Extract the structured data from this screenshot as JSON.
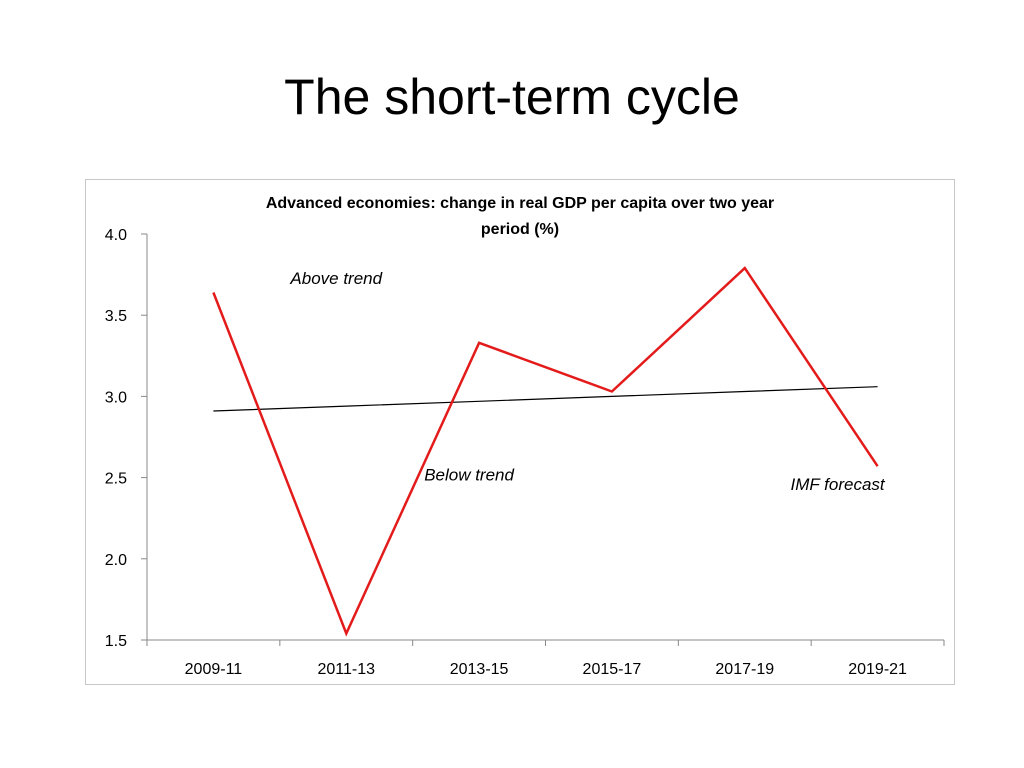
{
  "slide": {
    "title": "The short-term cycle"
  },
  "colors": {
    "series": "#e31b1b",
    "trend": "#000000",
    "axis": "#888888",
    "frame": "#c8c8c8"
  },
  "chart_data": {
    "type": "line",
    "title_lines": [
      "Advanced economies: change in real GDP per capita over two year",
      "period (%)"
    ],
    "categories": [
      "2009-11",
      "2011-13",
      "2013-15",
      "2015-17",
      "2017-19",
      "2019-21"
    ],
    "series": [
      {
        "values": [
          3.64,
          1.54,
          3.33,
          3.03,
          3.79,
          2.57
        ],
        "color": "#e31b1b"
      },
      {
        "values": [
          2.91,
          2.94,
          2.97,
          3.0,
          3.03,
          3.06
        ],
        "color": "#000000",
        "style": "trend line"
      }
    ],
    "y_axis": {
      "min": 1.5,
      "max": 4.0,
      "step": 0.5,
      "tick_labels": [
        "1.5",
        "2.0",
        "2.5",
        "3.0",
        "3.5",
        "4.0"
      ]
    },
    "grid": false,
    "legend": "none",
    "annotations": [
      {
        "text": "Above trend",
        "near": {
          "category": "2011-13",
          "value": 3.73
        }
      },
      {
        "text": "Below trend",
        "near": {
          "category": "2013-15",
          "value": 2.52
        }
      },
      {
        "text": "IMF forecast",
        "near": {
          "category": "2019-21",
          "value": 2.46
        }
      }
    ]
  }
}
